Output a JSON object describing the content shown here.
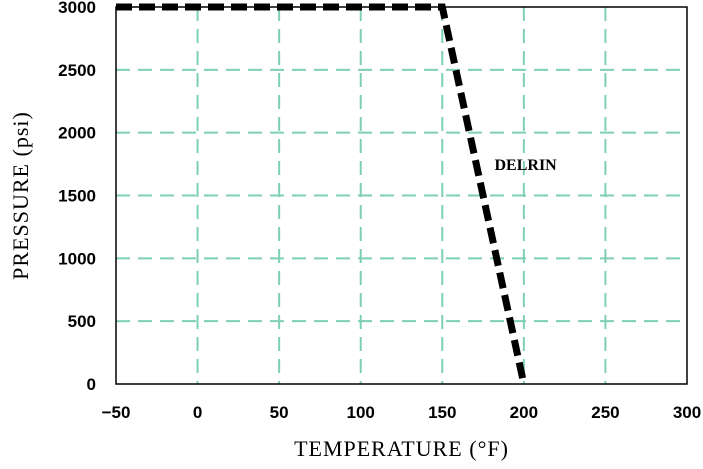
{
  "chart_data": {
    "type": "line",
    "xlabel": "TEMPERATURE (°F)",
    "ylabel": "PRESSURE (psi)",
    "xlim": [
      -50,
      300
    ],
    "ylim": [
      0,
      3000
    ],
    "x_ticks": [
      -50,
      0,
      50,
      100,
      150,
      200,
      250,
      300
    ],
    "y_ticks": [
      0,
      500,
      1000,
      1500,
      2000,
      2500,
      3000
    ],
    "grid": true,
    "grid_color": "#7ecfb8",
    "line_color": "#000000",
    "line_style": "dashed",
    "series": [
      {
        "name": "DELRIN",
        "x": [
          -50,
          150,
          200
        ],
        "y": [
          3000,
          3000,
          0
        ]
      }
    ],
    "annotations": [
      {
        "text": "DELRIN",
        "x": 182,
        "y": 1750
      }
    ]
  }
}
